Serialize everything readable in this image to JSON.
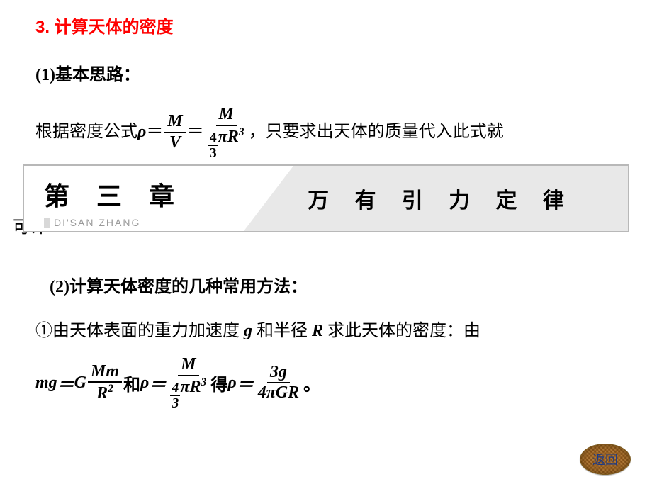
{
  "heading": "3.  计算天体的密度",
  "sub1": "(1)基本思路：",
  "para_pre": "根据密度公式 ",
  "rho": "ρ",
  "eq": "＝",
  "M": "M",
  "V": "V",
  "four": "4",
  "three": "3",
  "pi": "π",
  "R": "R",
  "Rcubed": "R³",
  "para_post": "，只要求出天体的质量代入此式就",
  "cutoff": "可计",
  "banner": {
    "chapter": "第 三 章",
    "pinyin": "DI'SAN ZHANG",
    "title": "万 有 引 力 定 律"
  },
  "sub2": "(2)计算天体密度的几种常用方法：",
  "method1": "①由天体表面的重力加速度 g 和半径 R 求此天体的密度：由",
  "mg": "mg",
  "G": "G",
  "Mm": "Mm",
  "Rsq": "R²",
  "and": "和 ",
  "get": "得 ",
  "threeg": "3g",
  "fourpiGR": "4πGR",
  "period": "。",
  "back": "返回",
  "colors": {
    "heading": "#ff0000",
    "text": "#000000",
    "banner_border": "#b8b8b8",
    "banner_right_bg": "#e8e8e8",
    "pinyin": "#9a9a9a",
    "back_text": "#1a3a8a"
  },
  "fonts": {
    "heading_size": 24,
    "body_size": 24,
    "banner_ch_size": 36,
    "banner_title_size": 30,
    "pinyin_size": 14
  }
}
